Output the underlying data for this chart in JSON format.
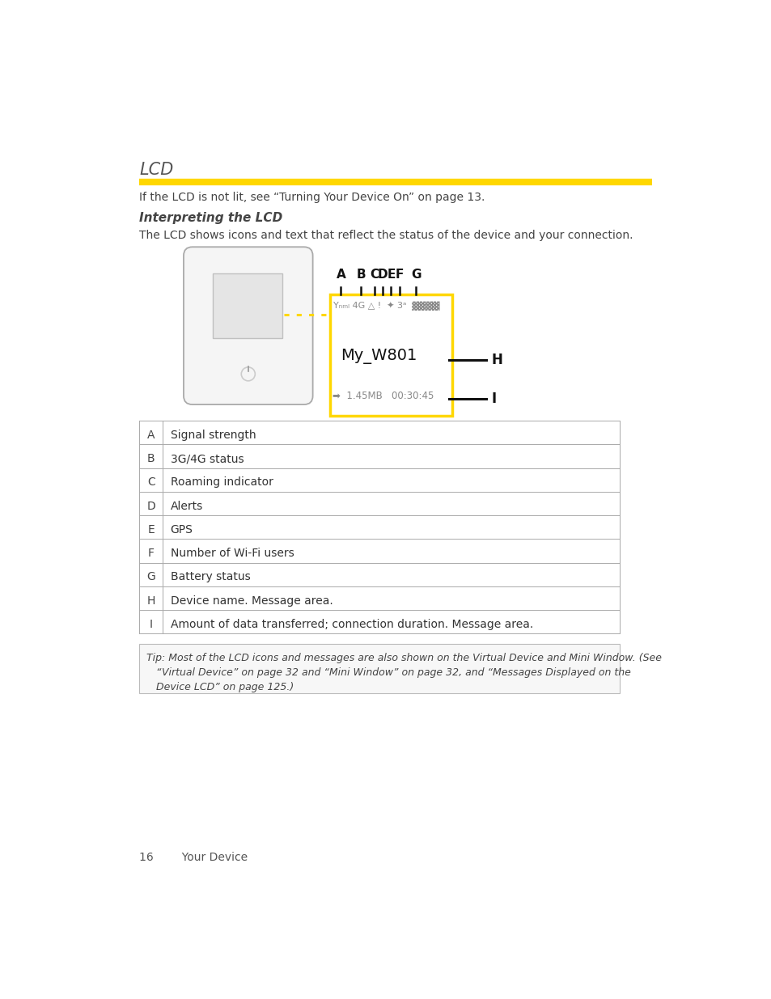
{
  "title": "LCD",
  "yellow_line_color": "#FFD700",
  "subtitle1": "Interpreting the LCD",
  "para1": "If the LCD is not lit, see “Turning Your Device On” on page 13.",
  "para2": "The LCD shows icons and text that reflect the status of the device and your connection.",
  "labels_abcdefg": [
    [
      "A",
      390
    ],
    [
      "B",
      422
    ],
    [
      "C",
      443
    ],
    [
      "D",
      457
    ],
    [
      "E",
      470
    ],
    [
      "F",
      483
    ],
    [
      "G",
      510
    ]
  ],
  "table_rows": [
    [
      "A",
      "Signal strength"
    ],
    [
      "B",
      "3G/4G status"
    ],
    [
      "C",
      "Roaming indicator"
    ],
    [
      "D",
      "Alerts"
    ],
    [
      "E",
      "GPS"
    ],
    [
      "F",
      "Number of Wi-Fi users"
    ],
    [
      "G",
      "Battery status"
    ],
    [
      "H",
      "Device name. Message area."
    ],
    [
      "I",
      "Amount of data transferred; connection duration. Message area."
    ]
  ],
  "bg_color": "#ffffff",
  "text_color": "#444444",
  "gray_color": "#888888",
  "table_border": "#aaaaaa",
  "tip_bg": "#f7f7f7",
  "tip_border": "#bbbbbb",
  "footer_text": "16        Your Device"
}
